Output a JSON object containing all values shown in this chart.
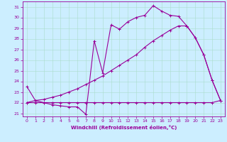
{
  "xlabel": "Windchill (Refroidissement éolien,°C)",
  "bg_color": "#cceeff",
  "line_color": "#990099",
  "grid_color": "#aaddcc",
  "xlim": [
    -0.5,
    23.5
  ],
  "ylim": [
    20.7,
    31.5
  ],
  "yticks": [
    21,
    22,
    23,
    24,
    25,
    26,
    27,
    28,
    29,
    30,
    31
  ],
  "xticks": [
    0,
    1,
    2,
    3,
    4,
    5,
    6,
    7,
    8,
    9,
    10,
    11,
    12,
    13,
    14,
    15,
    16,
    17,
    18,
    19,
    20,
    21,
    22,
    23
  ],
  "series": [
    {
      "x": [
        0,
        1,
        2,
        3,
        4,
        5,
        6,
        7,
        8,
        9,
        10,
        11,
        12,
        13,
        14,
        15,
        16,
        17,
        18,
        19,
        20,
        21,
        22,
        23
      ],
      "y": [
        23.5,
        22.2,
        22.0,
        21.8,
        21.7,
        21.6,
        21.6,
        20.9,
        27.8,
        24.8,
        29.3,
        28.9,
        29.6,
        30.0,
        30.2,
        31.1,
        30.6,
        30.2,
        30.1,
        29.2,
        28.1,
        26.5,
        24.1,
        22.2
      ]
    },
    {
      "x": [
        0,
        1,
        2,
        3,
        4,
        5,
        6,
        7,
        8,
        9,
        10,
        11,
        12,
        13,
        14,
        15,
        16,
        17,
        18,
        19,
        20,
        21,
        22,
        23
      ],
      "y": [
        22.0,
        22.0,
        22.0,
        22.0,
        22.0,
        22.0,
        22.0,
        22.0,
        22.0,
        22.0,
        22.0,
        22.0,
        22.0,
        22.0,
        22.0,
        22.0,
        22.0,
        22.0,
        22.0,
        22.0,
        22.0,
        22.0,
        22.0,
        22.2
      ]
    },
    {
      "x": [
        0,
        1,
        2,
        3,
        4,
        5,
        6,
        7,
        8,
        9,
        10,
        11,
        12,
        13,
        14,
        15,
        16,
        17,
        18,
        19,
        20,
        21,
        22,
        23
      ],
      "y": [
        22.0,
        22.2,
        22.3,
        22.5,
        22.7,
        23.0,
        23.3,
        23.7,
        24.1,
        24.5,
        25.0,
        25.5,
        26.0,
        26.5,
        27.2,
        27.8,
        28.3,
        28.8,
        29.2,
        29.2,
        28.1,
        26.5,
        24.1,
        22.2
      ]
    }
  ]
}
